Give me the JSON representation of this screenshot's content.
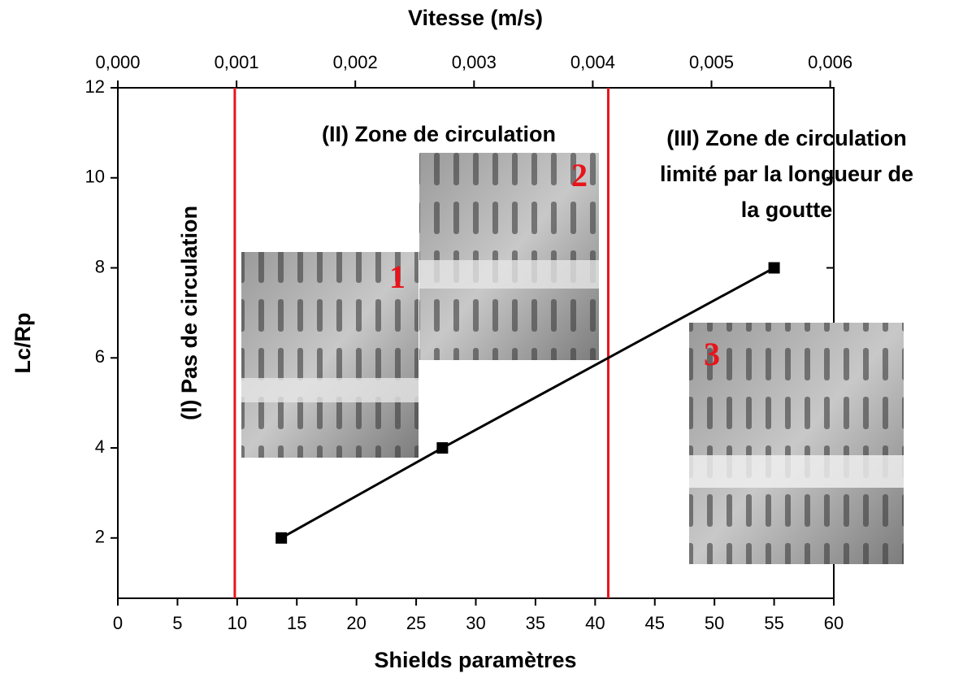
{
  "chart_data": {
    "type": "line",
    "x_label": "Shields paramètres",
    "x2_label": "Vitesse (m/s)",
    "y_label": "Lc/Rp",
    "x": [
      13.7,
      27.2,
      55
    ],
    "values": [
      2,
      4,
      8
    ],
    "color": "#000000",
    "xlim": [
      0,
      60
    ],
    "xticks": [
      0,
      5,
      10,
      15,
      20,
      25,
      30,
      35,
      40,
      45,
      50,
      55,
      60
    ],
    "ylim": [
      0.66,
      12
    ],
    "yticks": [
      2,
      4,
      6,
      8,
      10,
      12
    ],
    "x2lim": [
      0,
      0.00603
    ],
    "x2ticks": [
      {
        "value": 0,
        "label": "0,000"
      },
      {
        "value": 0.001,
        "label": "0,001"
      },
      {
        "value": 0.002,
        "label": "0,002"
      },
      {
        "value": 0.003,
        "label": "0,003"
      },
      {
        "value": 0.004,
        "label": "0,004"
      },
      {
        "value": 0.005,
        "label": "0,005"
      },
      {
        "value": 0.006,
        "label": "0,006"
      }
    ],
    "vlines": [
      {
        "x": 9.8,
        "color": "#e8141b"
      },
      {
        "x": 41.1,
        "color": "#e8141b"
      }
    ],
    "annotations": [
      {
        "lines": [
          "(I) Pas de circulation"
        ]
      },
      {
        "lines": [
          "(II) Zone de circulation"
        ]
      },
      {
        "lines": [
          "(III) Zone de circulation",
          "limité par la longueur de",
          "la goutte"
        ]
      }
    ],
    "inset_labels": [
      "1",
      "2",
      "3"
    ]
  }
}
